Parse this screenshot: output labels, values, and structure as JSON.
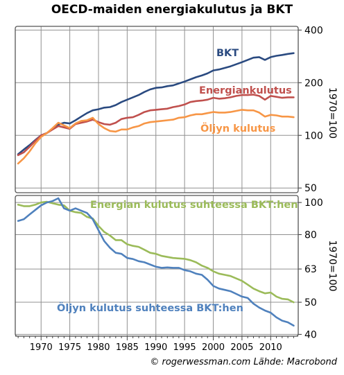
{
  "title": "OECD-maiden energiakulutus ja BKT",
  "credit": "© rogerwessman.com Lähde: Macrobond",
  "colors": {
    "bkt": "#2a4a80",
    "energy": "#c0504d",
    "oil": "#f79646",
    "energy_ratio": "#9bbb59",
    "oil_ratio": "#4f81bd",
    "grid": "#909090"
  },
  "chart_data": [
    {
      "type": "line",
      "y_scale": "log",
      "ylabel": "1970=100",
      "ylim": [
        47,
        420
      ],
      "xlim": [
        1965.5,
        2014.8
      ],
      "yticks": [
        50,
        100,
        200,
        400
      ],
      "xgrid": [
        1965,
        1970,
        1975,
        1980,
        1985,
        1990,
        1995,
        2000,
        2005,
        2010
      ],
      "grid": true,
      "series": [
        {
          "name": "BKT",
          "color_key": "bkt",
          "x": [
            1966,
            1967,
            1968,
            1969,
            1970,
            1971,
            1972,
            1973,
            1974,
            1975,
            1976,
            1977,
            1978,
            1979,
            1980,
            1981,
            1982,
            1983,
            1984,
            1985,
            1986,
            1987,
            1988,
            1989,
            1990,
            1991,
            1992,
            1993,
            1994,
            1995,
            1996,
            1997,
            1998,
            1999,
            2000,
            2001,
            2002,
            2003,
            2004,
            2005,
            2006,
            2007,
            2008,
            2009,
            2010,
            2011,
            2012,
            2013,
            2014
          ],
          "y": [
            78,
            83,
            88,
            94,
            100,
            103,
            109,
            115,
            118,
            117,
            122,
            128,
            134,
            139,
            141,
            144,
            145,
            149,
            155,
            160,
            165,
            170,
            177,
            183,
            187,
            188,
            191,
            193,
            198,
            203,
            209,
            215,
            220,
            226,
            235,
            238,
            243,
            248,
            255,
            262,
            270,
            278,
            280,
            270,
            280,
            285,
            288,
            292,
            295
          ]
        },
        {
          "name": "Energiankulutus",
          "color_key": "energy",
          "x": [
            1966,
            1967,
            1968,
            1969,
            1970,
            1971,
            1972,
            1973,
            1974,
            1975,
            1976,
            1977,
            1978,
            1979,
            1980,
            1981,
            1982,
            1983,
            1984,
            1985,
            1986,
            1987,
            1988,
            1989,
            1990,
            1991,
            1992,
            1993,
            1994,
            1995,
            1996,
            1997,
            1998,
            1999,
            2000,
            2001,
            2002,
            2003,
            2004,
            2005,
            2006,
            2007,
            2008,
            2009,
            2010,
            2011,
            2012,
            2013,
            2014
          ],
          "y": [
            77,
            80,
            86,
            93,
            100,
            103,
            108,
            113,
            111,
            109,
            116,
            118,
            120,
            123,
            119,
            116,
            115,
            118,
            124,
            126,
            127,
            131,
            136,
            139,
            140,
            141,
            142,
            145,
            147,
            150,
            155,
            157,
            158,
            160,
            164,
            162,
            163,
            165,
            168,
            170,
            170,
            171,
            168,
            160,
            168,
            166,
            164,
            165,
            165
          ]
        },
        {
          "name": "Öljyn kulutus",
          "color_key": "oil",
          "x": [
            1966,
            1967,
            1968,
            1969,
            1970,
            1971,
            1972,
            1973,
            1974,
            1975,
            1976,
            1977,
            1978,
            1979,
            1980,
            1981,
            1982,
            1983,
            1984,
            1985,
            1986,
            1987,
            1988,
            1989,
            1990,
            1991,
            1992,
            1993,
            1994,
            1995,
            1996,
            1997,
            1998,
            1999,
            2000,
            2001,
            2002,
            2003,
            2004,
            2005,
            2006,
            2007,
            2008,
            2009,
            2010,
            2011,
            2012,
            2013,
            2014
          ],
          "y": [
            69,
            74,
            81,
            90,
            98,
            103,
            110,
            118,
            114,
            110,
            117,
            121,
            122,
            126,
            116,
            110,
            106,
            105,
            108,
            108,
            111,
            113,
            117,
            119,
            120,
            121,
            122,
            123,
            126,
            127,
            130,
            132,
            132,
            134,
            136,
            135,
            135,
            136,
            138,
            140,
            139,
            139,
            135,
            128,
            131,
            130,
            128,
            128,
            127
          ]
        }
      ]
    },
    {
      "type": "line",
      "y_scale": "log",
      "ylabel": "1970=100",
      "ylim": [
        39.5,
        105
      ],
      "xlim": [
        1965.5,
        2014.8
      ],
      "yticks": [
        40,
        50,
        63,
        80,
        100
      ],
      "xticks": [
        1970,
        1975,
        1980,
        1985,
        1990,
        1995,
        2000,
        2005,
        2010
      ],
      "grid": true,
      "series": [
        {
          "name": "Energian kulutus suhteessa BKT:hen",
          "color_key": "energy_ratio",
          "x": [
            1966,
            1967,
            1968,
            1969,
            1970,
            1971,
            1972,
            1973,
            1974,
            1975,
            1976,
            1977,
            1978,
            1979,
            1980,
            1981,
            1982,
            1983,
            1984,
            1985,
            1986,
            1987,
            1988,
            1989,
            1990,
            1991,
            1992,
            1993,
            1994,
            1995,
            1996,
            1997,
            1998,
            1999,
            2000,
            2001,
            2002,
            2003,
            2004,
            2005,
            2006,
            2007,
            2008,
            2009,
            2010,
            2011,
            2012,
            2013,
            2014
          ],
          "y": [
            98.5,
            97.5,
            97.5,
            98.5,
            100,
            100.5,
            99.5,
            98.5,
            98,
            94.5,
            93.5,
            93,
            90.5,
            89.5,
            85,
            81.5,
            79.5,
            77,
            77,
            74.8,
            74,
            73.5,
            72,
            70.5,
            70,
            69,
            68.5,
            68,
            67.8,
            67.6,
            67,
            66,
            64.5,
            63.5,
            62,
            61,
            60.5,
            60,
            59,
            58,
            56.5,
            55,
            54,
            53.2,
            53.5,
            52,
            51.2,
            51,
            50
          ]
        },
        {
          "name": "Öljyn kulutus suhteessa BKT:hen",
          "color_key": "oil_ratio",
          "x": [
            1966,
            1967,
            1968,
            1969,
            1970,
            1971,
            1972,
            1973,
            1974,
            1975,
            1976,
            1977,
            1978,
            1979,
            1980,
            1981,
            1982,
            1983,
            1984,
            1985,
            1986,
            1987,
            1988,
            1989,
            1990,
            1991,
            1992,
            1993,
            1994,
            1995,
            1996,
            1997,
            1998,
            1999,
            2000,
            2001,
            2002,
            2003,
            2004,
            2005,
            2006,
            2007,
            2008,
            2009,
            2010,
            2011,
            2012,
            2013,
            2014
          ],
          "y": [
            88,
            89,
            92,
            95,
            98,
            100,
            101,
            103,
            96,
            94.5,
            96,
            94.5,
            93,
            89,
            82.5,
            76.5,
            73,
            70.5,
            70,
            68,
            67.5,
            66.5,
            66,
            65,
            64,
            63.5,
            63.7,
            63.5,
            63.5,
            62.5,
            62,
            61,
            60.5,
            58.5,
            56,
            55,
            54.5,
            54,
            53,
            52,
            51.5,
            49.5,
            48.2,
            47.2,
            46.5,
            45,
            44,
            43.5,
            42.5
          ]
        }
      ]
    }
  ]
}
